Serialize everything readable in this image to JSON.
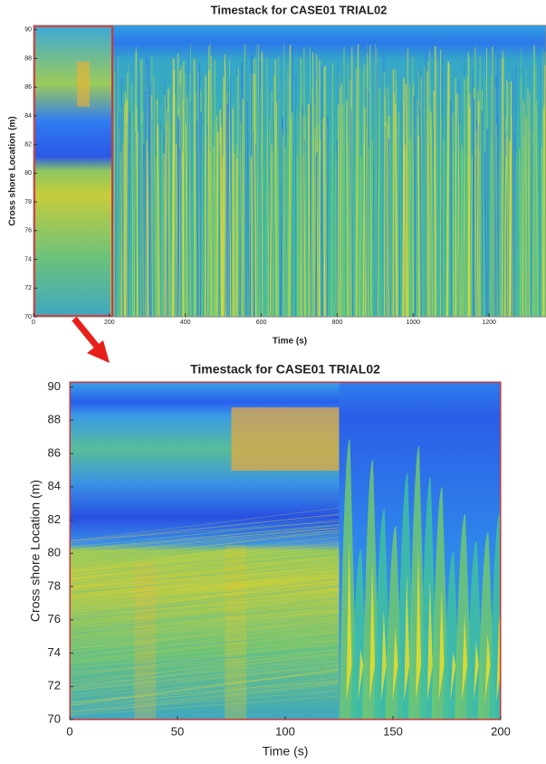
{
  "chart_data": [
    {
      "type": "heatmap",
      "title": "Timestack for CASE01 TRIAL02",
      "x_label": "Time (s)",
      "y_label": "Cross shore Location (m)",
      "xlim": [
        0,
        1350
      ],
      "xticks": [
        0,
        200,
        400,
        600,
        800,
        1000,
        1200
      ],
      "ylim": [
        70,
        90.3
      ],
      "yticks": [
        70,
        72,
        74,
        76,
        78,
        80,
        82,
        84,
        86,
        88,
        90
      ]
    },
    {
      "type": "heatmap",
      "title": "Timestack for CASE01 TRIAL02",
      "x_label": "Time (s)",
      "y_label": "Cross shore Location (m)",
      "xlim": [
        0,
        200
      ],
      "xticks": [
        0,
        50,
        100,
        150,
        200
      ],
      "ylim": [
        70,
        90.3
      ],
      "yticks": [
        70,
        72,
        74,
        76,
        78,
        80,
        82,
        84,
        86,
        88,
        90
      ]
    }
  ]
}
